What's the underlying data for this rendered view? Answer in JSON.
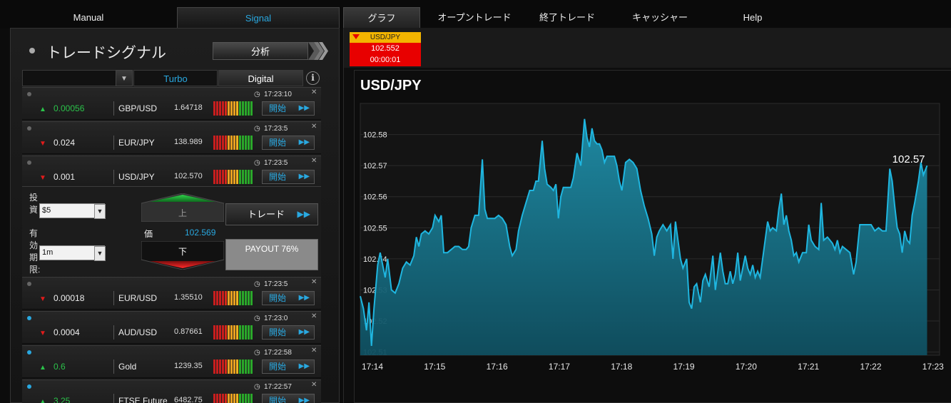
{
  "top_tabs_left": [
    {
      "label": "Manual",
      "active": false
    },
    {
      "label": "Signal",
      "active": true
    }
  ],
  "top_tabs_right": [
    {
      "label": "グラフ",
      "active": true
    },
    {
      "label": "オープントレード",
      "active": false
    },
    {
      "label": "終了トレード",
      "active": false
    },
    {
      "label": "キャッシャー",
      "active": false
    },
    {
      "label": "Help",
      "active": false
    }
  ],
  "panel": {
    "title": "トレードシグナル",
    "analyze_label": "分析",
    "filter": {
      "selected": "",
      "tabs": [
        {
          "label": "Turbo",
          "active": true
        },
        {
          "label": "Digital",
          "active": false
        }
      ],
      "info_glyph": "i"
    }
  },
  "start_label": "開始",
  "signals": [
    {
      "dot": "gray",
      "time": "17:23:10",
      "dir": "up",
      "change": "0.00056",
      "asset": "GBP/USD",
      "price": "1.64718"
    },
    {
      "dot": "gray",
      "time": "17:23:5",
      "dir": "down",
      "change": "0.024",
      "asset": "EUR/JPY",
      "price": "138.989"
    },
    {
      "dot": "gray",
      "time": "17:23:5",
      "dir": "down",
      "change": "0.001",
      "asset": "USD/JPY",
      "price": "102.570"
    },
    {
      "dot": "gray",
      "time": "17:23:5",
      "dir": "down",
      "change": "0.00018",
      "asset": "EUR/USD",
      "price": "1.35510"
    },
    {
      "dot": "blue",
      "time": "17:23:0",
      "dir": "down",
      "change": "0.0004",
      "asset": "AUD/USD",
      "price": "0.87661"
    },
    {
      "dot": "blue",
      "time": "17:22:58",
      "dir": "up",
      "change": "0.6",
      "asset": "Gold",
      "price": "1239.35"
    },
    {
      "dot": "blue",
      "time": "17:22:57",
      "dir": "up",
      "change": "3.25",
      "asset": "FTSE Future",
      "price": "6482.75"
    }
  ],
  "meter_colors": [
    "#c81e1e",
    "#c81e1e",
    "#c81e1e",
    "#c81e1e",
    "#d22a1a",
    "#e8a020",
    "#e8a020",
    "#e8a020",
    "#f0b020",
    "#2aa82a",
    "#2aa82a",
    "#2aa82a",
    "#2aa82a",
    "#2aa82a"
  ],
  "trade_form": {
    "invest_label": "投資",
    "invest_value": "$5",
    "expiry_label": "有効期限:",
    "expiry_value": "1m",
    "up_label": "上",
    "down_label": "下",
    "price_label": "価",
    "price_value": "102.569",
    "trade_label": "トレード",
    "payout_label": "PAYOUT 76%"
  },
  "mini_ticket": {
    "symbol": "USD/JPY",
    "price": "102.552",
    "countdown": "00:00:01"
  },
  "chart_data": {
    "type": "area",
    "title": "USD/JPY",
    "xlabel": "",
    "ylabel": "",
    "last_value_label": "102.57",
    "ylim": [
      102.509,
      102.59
    ],
    "yticks": [
      102.51,
      102.52,
      102.53,
      102.54,
      102.55,
      102.56,
      102.57,
      102.58
    ],
    "xlim": [
      0,
      9.3
    ],
    "xticks": [
      "17:14",
      "17:15",
      "17:16",
      "17:17",
      "17:18",
      "17:19",
      "17:20",
      "17:21",
      "17:22",
      "17:23"
    ],
    "grid": true,
    "series": [
      {
        "color": "#1fb6e0",
        "points": [
          [
            0.0,
            102.528
          ],
          [
            0.05,
            102.524
          ],
          [
            0.1,
            102.517
          ],
          [
            0.14,
            102.526
          ],
          [
            0.18,
            102.512
          ],
          [
            0.22,
            102.524
          ],
          [
            0.28,
            102.538
          ],
          [
            0.32,
            102.542
          ],
          [
            0.36,
            102.538
          ],
          [
            0.4,
            102.534
          ],
          [
            0.44,
            102.54
          ],
          [
            0.5,
            102.53
          ],
          [
            0.56,
            102.529
          ],
          [
            0.62,
            102.532
          ],
          [
            0.68,
            102.537
          ],
          [
            0.74,
            102.539
          ],
          [
            0.8,
            102.538
          ],
          [
            0.86,
            102.541
          ],
          [
            0.9,
            102.547
          ],
          [
            0.94,
            102.544
          ],
          [
            0.98,
            102.548
          ],
          [
            1.04,
            102.549
          ],
          [
            1.1,
            102.548
          ],
          [
            1.16,
            102.55
          ],
          [
            1.2,
            102.554
          ],
          [
            1.26,
            102.552
          ],
          [
            1.3,
            102.554
          ],
          [
            1.34,
            102.542
          ],
          [
            1.4,
            102.542
          ],
          [
            1.46,
            102.543
          ],
          [
            1.52,
            102.544
          ],
          [
            1.58,
            102.544
          ],
          [
            1.64,
            102.543
          ],
          [
            1.7,
            102.543
          ],
          [
            1.74,
            102.544
          ],
          [
            1.78,
            102.55
          ],
          [
            1.84,
            102.554
          ],
          [
            1.9,
            102.554
          ],
          [
            1.96,
            102.572
          ],
          [
            2.0,
            102.556
          ],
          [
            2.04,
            102.553
          ],
          [
            2.1,
            102.553
          ],
          [
            2.16,
            102.553
          ],
          [
            2.22,
            102.554
          ],
          [
            2.28,
            102.553
          ],
          [
            2.34,
            102.551
          ],
          [
            2.4,
            102.544
          ],
          [
            2.44,
            102.541
          ],
          [
            2.5,
            102.543
          ],
          [
            2.54,
            102.549
          ],
          [
            2.6,
            102.554
          ],
          [
            2.66,
            102.558
          ],
          [
            2.72,
            102.562
          ],
          [
            2.78,
            102.562
          ],
          [
            2.82,
            102.565
          ],
          [
            2.86,
            102.565
          ],
          [
            2.92,
            102.578
          ],
          [
            2.96,
            102.569
          ],
          [
            3.0,
            102.564
          ],
          [
            3.06,
            102.563
          ],
          [
            3.1,
            102.562
          ],
          [
            3.14,
            102.564
          ],
          [
            3.18,
            102.553
          ],
          [
            3.22,
            102.56
          ],
          [
            3.26,
            102.563
          ],
          [
            3.32,
            102.563
          ],
          [
            3.38,
            102.563
          ],
          [
            3.42,
            102.566
          ],
          [
            3.48,
            102.574
          ],
          [
            3.54,
            102.57
          ],
          [
            3.6,
            102.585
          ],
          [
            3.64,
            102.579
          ],
          [
            3.68,
            102.576
          ],
          [
            3.72,
            102.582
          ],
          [
            3.76,
            102.578
          ],
          [
            3.8,
            102.577
          ],
          [
            3.84,
            102.577
          ],
          [
            3.88,
            102.575
          ],
          [
            3.92,
            102.571
          ],
          [
            3.96,
            102.573
          ],
          [
            4.02,
            102.573
          ],
          [
            4.08,
            102.573
          ],
          [
            4.12,
            102.57
          ],
          [
            4.16,
            102.565
          ],
          [
            4.2,
            102.562
          ],
          [
            4.26,
            102.571
          ],
          [
            4.32,
            102.572
          ],
          [
            4.38,
            102.571
          ],
          [
            4.44,
            102.569
          ],
          [
            4.5,
            102.562
          ],
          [
            4.56,
            102.557
          ],
          [
            4.62,
            102.553
          ],
          [
            4.68,
            102.548
          ],
          [
            4.72,
            102.541
          ],
          [
            4.76,
            102.547
          ],
          [
            4.8,
            102.549
          ],
          [
            4.86,
            102.551
          ],
          [
            4.92,
            102.549
          ],
          [
            4.98,
            102.551
          ],
          [
            5.02,
            102.54
          ],
          [
            5.06,
            102.552
          ],
          [
            5.1,
            102.546
          ],
          [
            5.14,
            102.54
          ],
          [
            5.18,
            102.537
          ],
          [
            5.24,
            102.54
          ],
          [
            5.28,
            102.526
          ],
          [
            5.32,
            102.524
          ],
          [
            5.36,
            102.531
          ],
          [
            5.4,
            102.532
          ],
          [
            5.46,
            102.526
          ],
          [
            5.5,
            102.533
          ],
          [
            5.54,
            102.535
          ],
          [
            5.6,
            102.531
          ],
          [
            5.66,
            102.541
          ],
          [
            5.7,
            102.53
          ],
          [
            5.74,
            102.536
          ],
          [
            5.78,
            102.542
          ],
          [
            5.82,
            102.536
          ],
          [
            5.86,
            102.532
          ],
          [
            5.9,
            102.532
          ],
          [
            5.94,
            102.536
          ],
          [
            5.98,
            102.532
          ],
          [
            6.02,
            102.535
          ],
          [
            6.06,
            102.542
          ],
          [
            6.1,
            102.533
          ],
          [
            6.14,
            102.537
          ],
          [
            6.18,
            102.541
          ],
          [
            6.22,
            102.537
          ],
          [
            6.26,
            102.535
          ],
          [
            6.3,
            102.538
          ],
          [
            6.34,
            102.534
          ],
          [
            6.38,
            102.536
          ],
          [
            6.42,
            102.534
          ],
          [
            6.46,
            102.54
          ],
          [
            6.5,
            102.546
          ],
          [
            6.54,
            102.552
          ],
          [
            6.58,
            102.549
          ],
          [
            6.62,
            102.55
          ],
          [
            6.68,
            102.549
          ],
          [
            6.72,
            102.556
          ],
          [
            6.76,
            102.561
          ],
          [
            6.8,
            102.551
          ],
          [
            6.84,
            102.554
          ],
          [
            6.88,
            102.549
          ],
          [
            6.92,
            102.546
          ],
          [
            6.96,
            102.541
          ],
          [
            7.0,
            102.542
          ],
          [
            7.04,
            102.539
          ],
          [
            7.1,
            102.542
          ],
          [
            7.16,
            102.542
          ],
          [
            7.2,
            102.551
          ],
          [
            7.24,
            102.546
          ],
          [
            7.3,
            102.544
          ],
          [
            7.36,
            102.543
          ],
          [
            7.4,
            102.558
          ],
          [
            7.44,
            102.546
          ],
          [
            7.5,
            102.547
          ],
          [
            7.54,
            102.546
          ],
          [
            7.58,
            102.545
          ],
          [
            7.62,
            102.543
          ],
          [
            7.66,
            102.546
          ],
          [
            7.7,
            102.542
          ],
          [
            7.74,
            102.544
          ],
          [
            7.8,
            102.543
          ],
          [
            7.86,
            102.542
          ],
          [
            7.92,
            102.535
          ],
          [
            7.96,
            102.539
          ],
          [
            8.02,
            102.551
          ],
          [
            8.1,
            102.551
          ],
          [
            8.2,
            102.551
          ],
          [
            8.26,
            102.549
          ],
          [
            8.32,
            102.55
          ],
          [
            8.38,
            102.549
          ],
          [
            8.44,
            102.549
          ],
          [
            8.5,
            102.569
          ],
          [
            8.54,
            102.565
          ],
          [
            8.58,
            102.557
          ],
          [
            8.62,
            102.55
          ],
          [
            8.66,
            102.548
          ],
          [
            8.7,
            102.542
          ],
          [
            8.74,
            102.549
          ],
          [
            8.78,
            102.546
          ],
          [
            8.82,
            102.545
          ],
          [
            8.86,
            102.554
          ],
          [
            8.9,
            102.558
          ],
          [
            8.96,
            102.565
          ],
          [
            9.0,
            102.571
          ],
          [
            9.04,
            102.567
          ],
          [
            9.1,
            102.57
          ]
        ]
      }
    ]
  }
}
